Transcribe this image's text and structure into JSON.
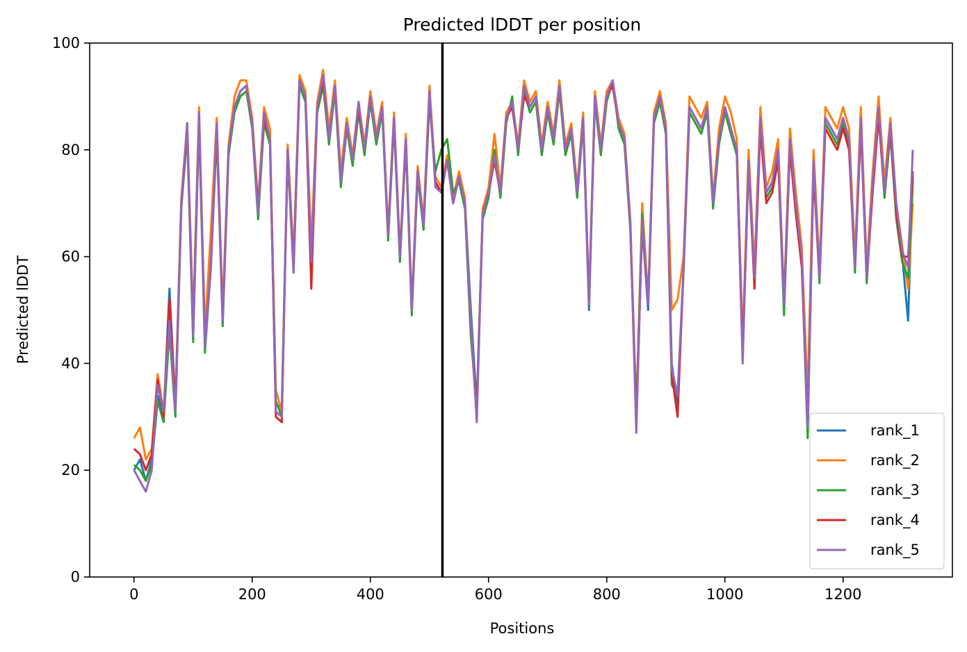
{
  "chart_data": {
    "type": "line",
    "title": "Predicted lDDT per position",
    "xlabel": "Positions",
    "ylabel": "Predicted lDDT",
    "xlim": [
      -75,
      1385
    ],
    "ylim": [
      0,
      100
    ],
    "xticks": [
      0,
      200,
      400,
      600,
      800,
      1000,
      1200
    ],
    "yticks": [
      0,
      20,
      40,
      60,
      80,
      100
    ],
    "grid": false,
    "legend_position": "lower-right",
    "vline_x": 522,
    "vline_color": "#000000",
    "x": [
      0,
      10,
      20,
      30,
      40,
      50,
      60,
      70,
      80,
      90,
      100,
      110,
      120,
      130,
      140,
      150,
      160,
      170,
      180,
      190,
      200,
      210,
      220,
      230,
      240,
      250,
      260,
      270,
      280,
      290,
      300,
      310,
      320,
      330,
      340,
      350,
      360,
      370,
      380,
      390,
      400,
      410,
      420,
      430,
      440,
      450,
      460,
      470,
      480,
      490,
      500,
      510,
      520,
      530,
      540,
      550,
      560,
      570,
      580,
      590,
      600,
      610,
      620,
      630,
      640,
      650,
      660,
      670,
      680,
      690,
      700,
      710,
      720,
      730,
      740,
      750,
      760,
      770,
      780,
      790,
      800,
      810,
      820,
      830,
      840,
      850,
      860,
      870,
      880,
      890,
      900,
      910,
      920,
      930,
      940,
      950,
      960,
      970,
      980,
      990,
      1000,
      1010,
      1020,
      1030,
      1040,
      1050,
      1060,
      1070,
      1080,
      1090,
      1100,
      1110,
      1120,
      1130,
      1140,
      1150,
      1160,
      1170,
      1180,
      1190,
      1200,
      1210,
      1220,
      1230,
      1240,
      1250,
      1260,
      1270,
      1280,
      1290,
      1300,
      1310,
      1318
    ],
    "series": [
      {
        "name": "rank_1",
        "color": "#1f77b4",
        "values": [
          20,
          22,
          18,
          22,
          34,
          30,
          54,
          32,
          70,
          84,
          45,
          86,
          44,
          60,
          84,
          48,
          80,
          88,
          91,
          92,
          85,
          68,
          86,
          82,
          32,
          32,
          80,
          58,
          93,
          90,
          60,
          88,
          93,
          82,
          92,
          74,
          85,
          78,
          88,
          80,
          90,
          82,
          88,
          64,
          86,
          60,
          82,
          50,
          76,
          66,
          90,
          74,
          72,
          78,
          70,
          75,
          70,
          50,
          32,
          68,
          72,
          78,
          72,
          86,
          88,
          80,
          92,
          88,
          90,
          80,
          88,
          82,
          92,
          80,
          84,
          72,
          86,
          50,
          90,
          80,
          90,
          92,
          85,
          82,
          66,
          30,
          66,
          50,
          86,
          90,
          84,
          40,
          32,
          58,
          88,
          86,
          84,
          88,
          70,
          82,
          88,
          84,
          80,
          42,
          78,
          56,
          86,
          72,
          74,
          80,
          50,
          82,
          70,
          60,
          30,
          78,
          56,
          86,
          84,
          82,
          86,
          82,
          58,
          86,
          56,
          74,
          88,
          72,
          84,
          68,
          60,
          48,
          75
        ]
      },
      {
        "name": "rank_2",
        "color": "#ff7f0e",
        "values": [
          26,
          28,
          22,
          24,
          38,
          31,
          50,
          33,
          71,
          85,
          48,
          88,
          46,
          65,
          86,
          50,
          81,
          90,
          93,
          93,
          86,
          70,
          88,
          84,
          35,
          31,
          81,
          60,
          94,
          91,
          62,
          89,
          95,
          84,
          93,
          76,
          86,
          79,
          89,
          81,
          91,
          83,
          89,
          65,
          87,
          61,
          83,
          51,
          77,
          67,
          92,
          75,
          73,
          79,
          71,
          76,
          71,
          46,
          30,
          69,
          73,
          83,
          73,
          87,
          89,
          81,
          93,
          89,
          91,
          81,
          89,
          83,
          93,
          81,
          85,
          73,
          87,
          52,
          91,
          81,
          91,
          93,
          86,
          83,
          67,
          31,
          70,
          52,
          87,
          91,
          85,
          50,
          52,
          60,
          90,
          88,
          86,
          89,
          71,
          84,
          90,
          87,
          82,
          44,
          80,
          58,
          88,
          73,
          76,
          82,
          52,
          84,
          72,
          62,
          34,
          80,
          58,
          88,
          86,
          84,
          88,
          84,
          60,
          88,
          58,
          76,
          90,
          74,
          86,
          70,
          62,
          54,
          70
        ]
      },
      {
        "name": "rank_3",
        "color": "#2ca02c",
        "values": [
          21,
          20,
          18,
          21,
          33,
          29,
          46,
          30,
          69,
          83,
          44,
          85,
          42,
          58,
          83,
          47,
          79,
          87,
          90,
          91,
          84,
          67,
          85,
          81,
          33,
          30,
          79,
          57,
          92,
          89,
          59,
          87,
          92,
          81,
          91,
          73,
          84,
          77,
          87,
          79,
          89,
          81,
          87,
          63,
          85,
          59,
          81,
          49,
          75,
          65,
          89,
          76,
          80,
          82,
          72,
          74,
          69,
          45,
          32,
          67,
          71,
          80,
          71,
          85,
          90,
          79,
          91,
          87,
          89,
          79,
          87,
          81,
          91,
          79,
          83,
          71,
          85,
          51,
          89,
          79,
          89,
          93,
          84,
          81,
          65,
          30,
          68,
          51,
          85,
          89,
          83,
          36,
          34,
          57,
          87,
          85,
          83,
          87,
          69,
          81,
          87,
          83,
          79,
          41,
          77,
          55,
          85,
          71,
          73,
          79,
          49,
          81,
          69,
          59,
          26,
          77,
          55,
          85,
          83,
          81,
          85,
          81,
          57,
          85,
          55,
          73,
          87,
          71,
          83,
          67,
          59,
          56,
          74
        ]
      },
      {
        "name": "rank_4",
        "color": "#d62728",
        "values": [
          24,
          23,
          20,
          23,
          37,
          30,
          52,
          32,
          70,
          84,
          46,
          86,
          44,
          58,
          84,
          48,
          80,
          88,
          91,
          92,
          85,
          69,
          86,
          82,
          30,
          29,
          80,
          58,
          93,
          90,
          54,
          88,
          93,
          82,
          92,
          74,
          85,
          78,
          88,
          80,
          90,
          82,
          88,
          64,
          86,
          60,
          82,
          50,
          76,
          66,
          90,
          74,
          72,
          78,
          70,
          75,
          70,
          47,
          31,
          68,
          72,
          78,
          72,
          86,
          88,
          80,
          90,
          88,
          90,
          80,
          88,
          82,
          92,
          80,
          84,
          72,
          86,
          52,
          90,
          80,
          90,
          92,
          85,
          82,
          66,
          29,
          66,
          51,
          86,
          90,
          84,
          38,
          30,
          58,
          88,
          86,
          84,
          88,
          70,
          82,
          88,
          84,
          80,
          42,
          78,
          54,
          84,
          70,
          72,
          78,
          52,
          80,
          68,
          58,
          29,
          76,
          56,
          84,
          82,
          80,
          84,
          80,
          58,
          84,
          56,
          72,
          86,
          72,
          84,
          68,
          60,
          60,
          76
        ]
      },
      {
        "name": "rank_5",
        "color": "#9467bd",
        "values": [
          20,
          18,
          16,
          20,
          36,
          31,
          48,
          31,
          70,
          85,
          45,
          87,
          43,
          59,
          85,
          48,
          80,
          88,
          91,
          92,
          85,
          68,
          87,
          82,
          31,
          30,
          80,
          57,
          93,
          90,
          59,
          88,
          94,
          82,
          92,
          74,
          85,
          78,
          89,
          80,
          90,
          82,
          88,
          64,
          86,
          60,
          82,
          50,
          76,
          66,
          91,
          73,
          72,
          78,
          70,
          75,
          70,
          48,
          29,
          68,
          72,
          79,
          72,
          86,
          89,
          80,
          92,
          88,
          90,
          80,
          88,
          82,
          92,
          80,
          84,
          72,
          86,
          51,
          90,
          80,
          90,
          93,
          85,
          82,
          66,
          27,
          67,
          51,
          86,
          90,
          84,
          39,
          34,
          58,
          88,
          86,
          84,
          88,
          70,
          82,
          88,
          84,
          80,
          40,
          78,
          56,
          86,
          72,
          74,
          80,
          51,
          82,
          70,
          60,
          28,
          78,
          56,
          86,
          84,
          82,
          86,
          82,
          58,
          86,
          56,
          74,
          88,
          72,
          85,
          70,
          61,
          58,
          80
        ]
      }
    ]
  }
}
